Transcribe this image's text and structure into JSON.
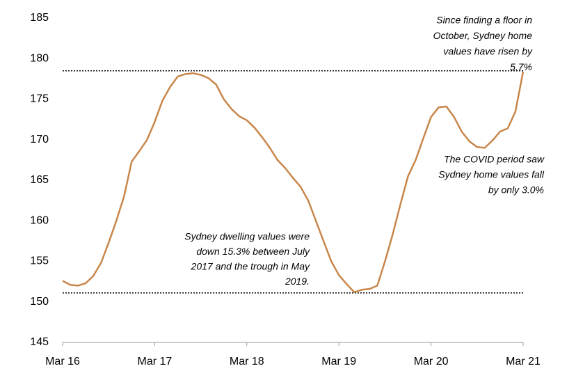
{
  "chart_data": {
    "type": "line",
    "categories": [
      "Mar 16",
      null,
      null,
      null,
      null,
      null,
      null,
      null,
      null,
      null,
      null,
      null,
      "Mar 17",
      null,
      null,
      null,
      null,
      null,
      null,
      null,
      null,
      null,
      null,
      null,
      "Mar 18",
      null,
      null,
      null,
      null,
      null,
      null,
      null,
      null,
      null,
      null,
      null,
      "Mar 19",
      null,
      null,
      null,
      null,
      null,
      null,
      null,
      null,
      null,
      null,
      null,
      "Mar 20",
      null,
      null,
      null,
      null,
      null,
      null,
      null,
      null,
      null,
      null,
      null,
      "Mar 21"
    ],
    "series": [
      {
        "color": "#c8864a",
        "values": [
          152.6,
          152.1,
          152.0,
          152.3,
          153.2,
          154.8,
          157.3,
          160.0,
          163.0,
          167.3,
          168.6,
          170.0,
          172.2,
          174.8,
          176.5,
          177.8,
          178.1,
          178.2,
          178.0,
          177.6,
          176.8,
          175.0,
          173.8,
          172.9,
          172.4,
          171.5,
          170.3,
          169.0,
          167.5,
          166.5,
          165.3,
          164.2,
          162.5,
          160.0,
          157.5,
          155.0,
          153.3,
          152.2,
          151.2,
          151.5,
          151.6,
          152.0,
          155.0,
          158.3,
          162.0,
          165.5,
          167.5,
          170.2,
          172.8,
          174.0,
          174.1,
          172.8,
          171.0,
          169.8,
          169.1,
          169.0,
          169.9,
          171.0,
          171.4,
          173.5,
          178.4
        ]
      }
    ],
    "ylim": [
      145,
      185
    ],
    "yticks": [
      145,
      150,
      155,
      160,
      165,
      170,
      175,
      180,
      185
    ],
    "reference_lines": [
      178.5,
      151.1
    ],
    "annotations": [
      {
        "lines": [
          "Since finding a floor in",
          "October, Sydney home",
          "values have risen by",
          "5.7%"
        ]
      },
      {
        "lines": [
          "The COVID period saw",
          "Sydney home values fall",
          "by only 3.0%"
        ]
      },
      {
        "lines": [
          "Sydney dwelling values were",
          "down 15.3% between July",
          "2017 and the trough in May",
          "2019."
        ]
      }
    ]
  }
}
